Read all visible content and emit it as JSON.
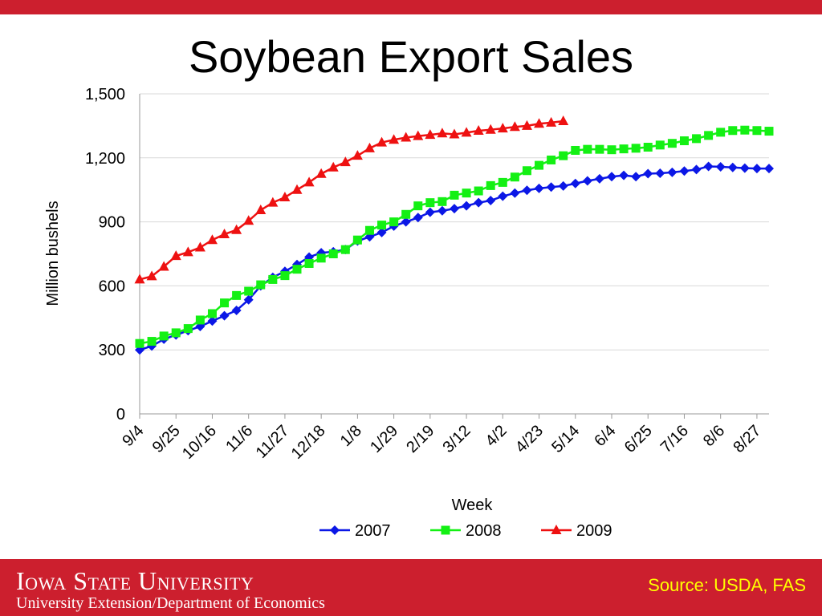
{
  "slide": {
    "title": "Soybean Export Sales",
    "university": "Iowa State University",
    "department": "University Extension/Department of Economics",
    "source": "Source: USDA, FAS"
  },
  "colors": {
    "accent_bar": "#cc1f2e",
    "source_text": "#ffff00",
    "series_2007": "#0b17e6",
    "series_2008": "#14f014",
    "series_2009": "#ee1111"
  },
  "chart_data": {
    "type": "line",
    "xlabel": "Week",
    "ylabel": "Million bushels",
    "ylim": [
      0,
      1500
    ],
    "yticks": [
      0,
      300,
      600,
      900,
      1200,
      1500
    ],
    "ytick_labels": [
      "0",
      "300",
      "600",
      "900",
      "1,200",
      "1,500"
    ],
    "xtick_labels": [
      "9/4",
      "9/25",
      "10/16",
      "11/6",
      "11/27",
      "12/18",
      "1/8",
      "1/29",
      "2/19",
      "3/12",
      "4/2",
      "4/23",
      "5/14",
      "6/4",
      "6/25",
      "7/16",
      "8/6",
      "8/27"
    ],
    "xtick_every": 3,
    "n_weeks": 53,
    "grid": "horizontal",
    "legend_position": "bottom",
    "series": [
      {
        "name": "2007",
        "marker": "diamond",
        "color": "#0b17e6",
        "values": [
          300,
          318,
          350,
          370,
          390,
          410,
          435,
          460,
          485,
          535,
          600,
          640,
          668,
          700,
          735,
          755,
          760,
          770,
          810,
          830,
          850,
          880,
          900,
          920,
          945,
          952,
          962,
          975,
          990,
          1000,
          1020,
          1035,
          1048,
          1057,
          1063,
          1068,
          1080,
          1092,
          1102,
          1112,
          1118,
          1112,
          1126,
          1128,
          1132,
          1138,
          1145,
          1160,
          1158,
          1155,
          1152,
          1150,
          1150
        ]
      },
      {
        "name": "2008",
        "marker": "square",
        "color": "#14f014",
        "values": [
          330,
          340,
          365,
          380,
          400,
          440,
          470,
          520,
          555,
          575,
          605,
          630,
          648,
          678,
          705,
          730,
          750,
          770,
          815,
          860,
          885,
          900,
          935,
          975,
          990,
          995,
          1025,
          1035,
          1045,
          1070,
          1085,
          1110,
          1140,
          1165,
          1190,
          1210,
          1235,
          1240,
          1240,
          1238,
          1242,
          1245,
          1250,
          1260,
          1268,
          1280,
          1290,
          1305,
          1320,
          1328,
          1330,
          1328,
          1325
        ]
      },
      {
        "name": "2009",
        "marker": "triangle",
        "color": "#ee1111",
        "values": [
          630,
          645,
          690,
          740,
          758,
          780,
          815,
          842,
          862,
          905,
          955,
          990,
          1015,
          1050,
          1085,
          1125,
          1155,
          1180,
          1210,
          1245,
          1272,
          1285,
          1295,
          1302,
          1308,
          1315,
          1310,
          1318,
          1327,
          1332,
          1338,
          1345,
          1350,
          1360,
          1365,
          1372
        ]
      }
    ]
  }
}
